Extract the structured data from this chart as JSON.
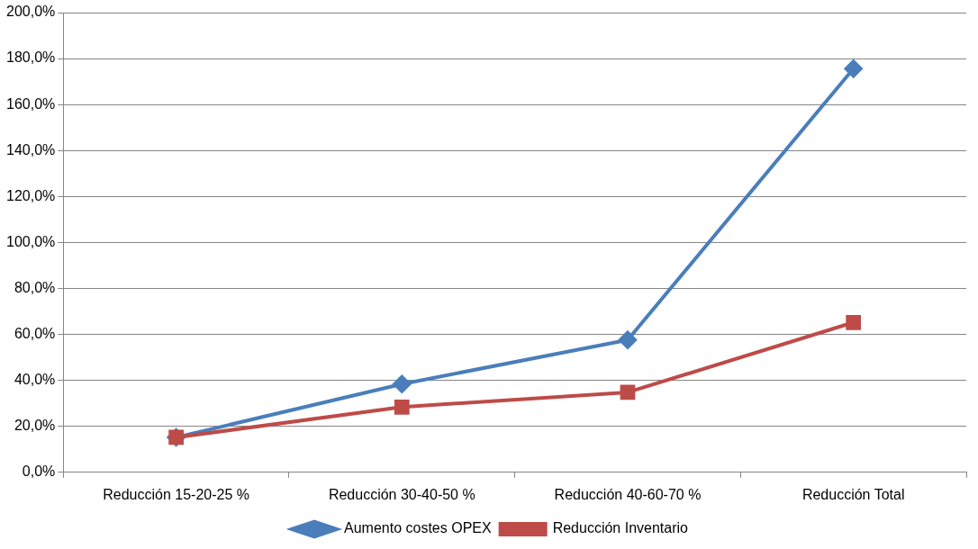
{
  "chart_data": {
    "type": "line",
    "categories": [
      "Reducción 15-20-25 %",
      "Reducción 30-40-50 %",
      "Reducción 40-60-70 %",
      "Reducción Total"
    ],
    "series": [
      {
        "name": "Aumento costes OPEX",
        "color": "#4a7ebb",
        "marker": "diamond",
        "values": [
          15.2,
          38.4,
          57.6,
          175.6
        ]
      },
      {
        "name": "Reducción Inventario",
        "color": "#be4b48",
        "marker": "square",
        "values": [
          15.2,
          28.4,
          34.8,
          65.2
        ]
      }
    ],
    "ylim": [
      0,
      200
    ],
    "yticks": [
      {
        "value": 0,
        "label": "0,0%"
      },
      {
        "value": 20,
        "label": "20,0%"
      },
      {
        "value": 40,
        "label": "40,0%"
      },
      {
        "value": 60,
        "label": "60,0%"
      },
      {
        "value": 80,
        "label": "80,0%"
      },
      {
        "value": 100,
        "label": "100,0%"
      },
      {
        "value": 120,
        "label": "120,0%"
      },
      {
        "value": 140,
        "label": "140,0%"
      },
      {
        "value": 160,
        "label": "160,0%"
      },
      {
        "value": 180,
        "label": "180,0%"
      },
      {
        "value": 200,
        "label": "200,0%"
      }
    ],
    "grid": "y",
    "legend": "bottom",
    "line_style": "solid"
  }
}
